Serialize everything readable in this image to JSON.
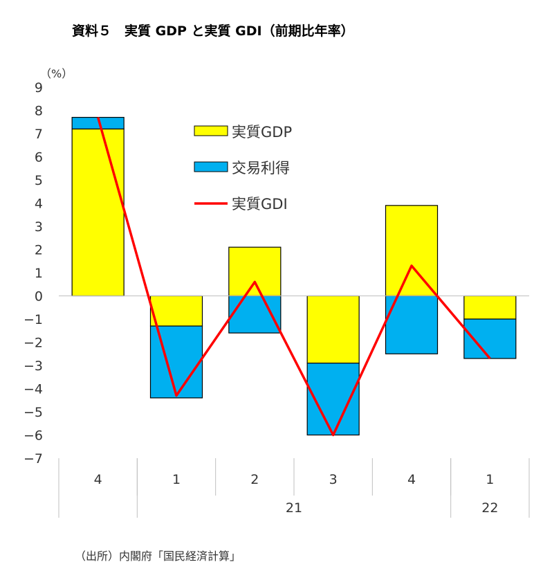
{
  "title": "資料５　実質 GDP と実質 GDI（前期比年率）",
  "source": "（出所）内閣府「国民経済計算」",
  "chart_data": {
    "type": "bar",
    "stacked": true,
    "title": "資料５　実質 GDP と実質 GDI（前期比年率）",
    "ylabel": "（%）",
    "ylim": [
      -7,
      9
    ],
    "yticks": [
      9,
      8,
      7,
      6,
      5,
      4,
      3,
      2,
      1,
      0,
      -1,
      -2,
      -3,
      -4,
      -5,
      -6,
      -7
    ],
    "categories": [
      "4",
      "1",
      "2",
      "3",
      "4",
      "1"
    ],
    "year_groups": [
      {
        "label": "",
        "span": 1
      },
      {
        "label": "21",
        "span": 4
      },
      {
        "label": "22",
        "span": 1
      }
    ],
    "series": [
      {
        "name": "実質GDP",
        "kind": "bar",
        "color": "#FFFF00",
        "values": [
          7.2,
          -1.3,
          2.1,
          -2.9,
          3.9,
          -1.0
        ]
      },
      {
        "name": "交易利得",
        "kind": "bar",
        "color": "#00B0F0",
        "values": [
          0.5,
          -3.1,
          -1.6,
          -3.1,
          -2.5,
          -1.7
        ]
      },
      {
        "name": "実質GDI",
        "kind": "line",
        "color": "#FF0000",
        "values": [
          7.7,
          -4.3,
          0.6,
          -6.0,
          1.3,
          -2.7
        ]
      }
    ],
    "legend_position": "top-center",
    "grid": false
  }
}
